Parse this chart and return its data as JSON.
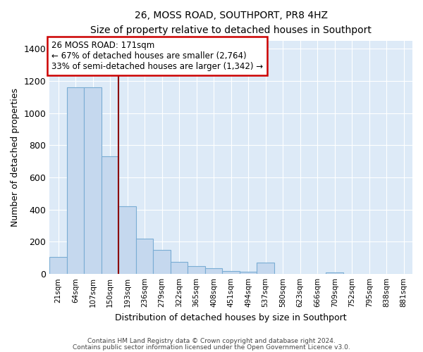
{
  "title": "26, MOSS ROAD, SOUTHPORT, PR8 4HZ",
  "subtitle": "Size of property relative to detached houses in Southport",
  "xlabel": "Distribution of detached houses by size in Southport",
  "ylabel": "Number of detached properties",
  "bar_color": "#c5d8ee",
  "bar_edge_color": "#7aadd4",
  "background_color": "#ddeaf7",
  "grid_color": "#ffffff",
  "categories": [
    "21sqm",
    "64sqm",
    "107sqm",
    "150sqm",
    "193sqm",
    "236sqm",
    "279sqm",
    "322sqm",
    "365sqm",
    "408sqm",
    "451sqm",
    "494sqm",
    "537sqm",
    "580sqm",
    "623sqm",
    "666sqm",
    "709sqm",
    "752sqm",
    "795sqm",
    "838sqm",
    "881sqm"
  ],
  "values": [
    105,
    1160,
    1160,
    730,
    420,
    220,
    150,
    75,
    50,
    35,
    20,
    15,
    70,
    0,
    0,
    0,
    10,
    0,
    0,
    0,
    0
  ],
  "vline_color": "#8b0000",
  "ylim": [
    0,
    1450
  ],
  "yticks": [
    0,
    200,
    400,
    600,
    800,
    1000,
    1200,
    1400
  ],
  "annotation_title": "26 MOSS ROAD: 171sqm",
  "annotation_line1": "← 67% of detached houses are smaller (2,764)",
  "annotation_line2": "33% of semi-detached houses are larger (1,342) →",
  "annotation_box_color": "#ffffff",
  "annotation_box_edge": "#cc0000",
  "footer1": "Contains HM Land Registry data © Crown copyright and database right 2024.",
  "footer2": "Contains public sector information licensed under the Open Government Licence v3.0."
}
